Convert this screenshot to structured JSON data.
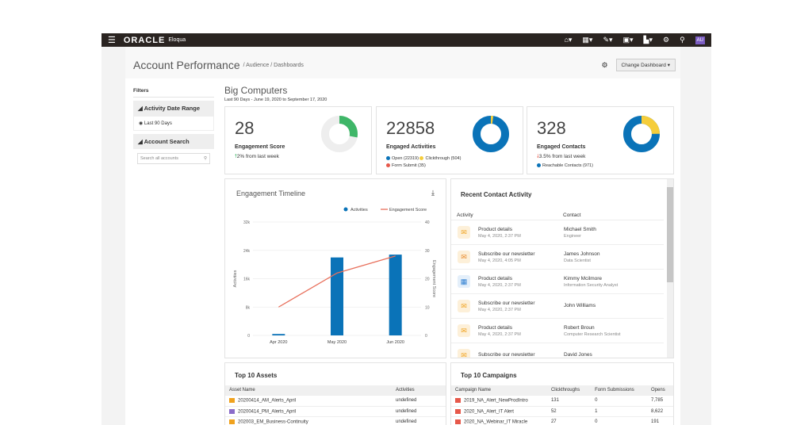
{
  "topbar": {
    "logo": "ORACLE",
    "product": "Eloqua",
    "avatar": "AU"
  },
  "header": {
    "title": "Account Performance",
    "breadcrumb": "/ Audience  / Dashboards",
    "change_dashboard": "Change Dashboard ▾"
  },
  "filters": {
    "title": "Filters",
    "date_range": "Activity Date Range",
    "date_option": "Last 90 Days",
    "account_search": "Account Search",
    "search_placeholder": "Search all accounts"
  },
  "account": {
    "name": "Big Computers",
    "range": "Last 90 Days - June 19, 2020 to September 17, 2020"
  },
  "kpis": [
    {
      "value": "28",
      "label": "Engagement Score",
      "change": "2% from last week",
      "direction": "up"
    },
    {
      "value": "22858",
      "label": "Engaged Activities",
      "legend": [
        "Open (22319)",
        "Clickthrough (504)",
        "Form Submit (35)"
      ]
    },
    {
      "value": "328",
      "label": "Engaged Contacts",
      "change": "3.5% from last week",
      "direction": "down",
      "legend": [
        "Reachable Contacts (971)"
      ]
    }
  ],
  "colors": {
    "blue": "#0a73b8",
    "green": "#3fb668",
    "yellow": "#f5cd3b",
    "red": "#e6584a",
    "line": "#e8705c"
  },
  "chart_data": {
    "type": "bar",
    "title": "Engagement Timeline",
    "categories": [
      "Apr 2020",
      "May 2020",
      "Jun 2020"
    ],
    "series": [
      {
        "name": "Activities",
        "type": "bar",
        "axis": "left",
        "values": [
          400,
          22000,
          22800
        ]
      },
      {
        "name": "Engagement Score",
        "type": "line",
        "axis": "right",
        "values": [
          10,
          22,
          28
        ]
      }
    ],
    "ylabel": "Activities",
    "y2label": "Engagement Score",
    "ylim": [
      0,
      32000
    ],
    "y2lim": [
      0,
      40
    ],
    "yticks": [
      "0",
      "8k",
      "16k",
      "24k",
      "32k"
    ],
    "y2ticks": [
      "0",
      "10",
      "20",
      "30",
      "40"
    ],
    "grid": true,
    "legend": "top-right"
  },
  "recent": {
    "title": "Recent Contact Activity",
    "col_activity": "Activity",
    "col_contact": "Contact",
    "rows": [
      {
        "icon": "email",
        "activity": "Product details",
        "date": "May 4, 2020, 2:37 PM",
        "name": "Michael Smith",
        "role": "Engineer"
      },
      {
        "icon": "newsletter",
        "activity": "Subscribe our newsletter",
        "date": "May 4, 2020, 4:05 PM",
        "name": "James Johnson",
        "role": "Data Scientist"
      },
      {
        "icon": "form",
        "activity": "Product details",
        "date": "May 4, 2020, 2:37 PM",
        "name": "Kimmy Mcilmore",
        "role": "Information Security Analyst"
      },
      {
        "icon": "email",
        "activity": "Subscribe our newsletter",
        "date": "May 4, 2020, 2:37 PM",
        "name": "John Williams",
        "role": ""
      },
      {
        "icon": "email",
        "activity": "Product details",
        "date": "May 4, 2020, 2:37 PM",
        "name": "Robert Broun",
        "role": "Computer Research Scientist"
      },
      {
        "icon": "email",
        "activity": "Subscribe our newsletter",
        "date": "",
        "name": "David Jones",
        "role": ""
      }
    ]
  },
  "assets": {
    "title": "Top 10 Assets",
    "cols": [
      "Asset Name",
      "Activities"
    ],
    "rows": [
      [
        "20200414_AM_Alerts_April",
        "undefined"
      ],
      [
        "20200414_PM_Alerts_April",
        "undefined"
      ],
      [
        "202003_EM_Business-Continuity",
        "undefined"
      ]
    ]
  },
  "campaigns": {
    "title": "Top 10 Campaigns",
    "cols": [
      "Campaign Name",
      "Clickthroughs",
      "Form Submissions",
      "Opens"
    ],
    "rows": [
      [
        "2019_NA_Alert_NewProdIntro",
        "131",
        "0",
        "7,785"
      ],
      [
        "2020_NA_Alert_IT Alert",
        "52",
        "1",
        "8,622"
      ],
      [
        "2020_NA_Webinar_IT Miracle",
        "27",
        "0",
        "191"
      ]
    ]
  }
}
